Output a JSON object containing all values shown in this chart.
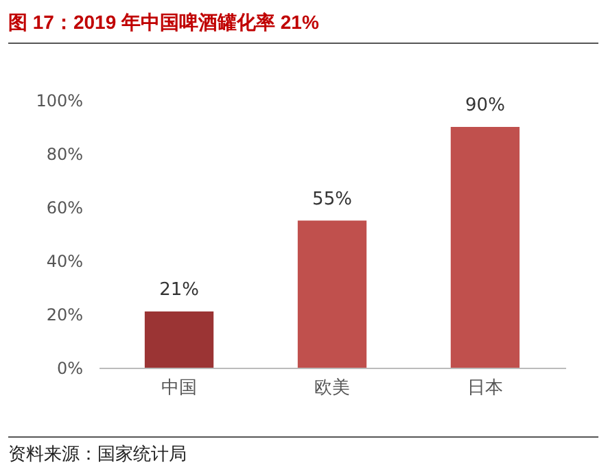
{
  "chart_data": {
    "type": "bar",
    "title": "图 17：2019 年中国啤酒罐化率 21%",
    "categories": [
      "中国",
      "欧美",
      "日本"
    ],
    "values": [
      21,
      55,
      90
    ],
    "colors": [
      "#9b3434",
      "#c0504d",
      "#c0504d"
    ],
    "value_labels": [
      "21%",
      "55%",
      "90%"
    ],
    "ylim": [
      0,
      100
    ],
    "yticks": [
      {
        "value": 0,
        "label": "0%"
      },
      {
        "value": 20,
        "label": "20%"
      },
      {
        "value": 40,
        "label": "40%"
      },
      {
        "value": 60,
        "label": "60%"
      },
      {
        "value": 80,
        "label": "80%"
      },
      {
        "value": 100,
        "label": "100%"
      }
    ],
    "grid": false,
    "legend": false,
    "annotations": [
      "资料来源：国家统计局"
    ]
  }
}
